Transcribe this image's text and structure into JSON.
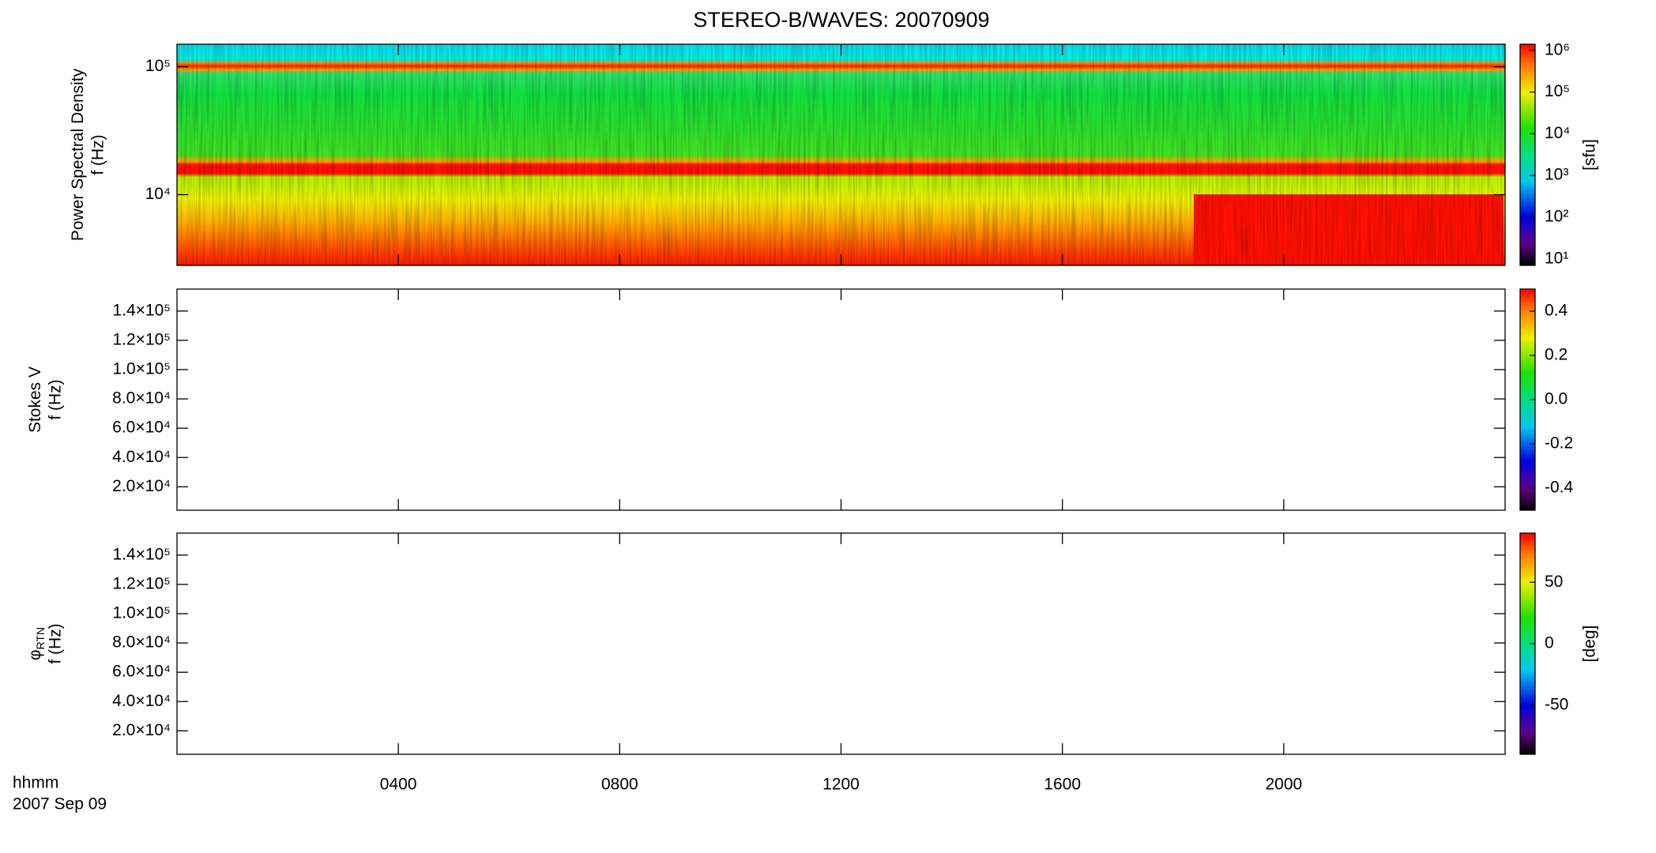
{
  "chart_data": {
    "type": "spectrogram",
    "title": "STEREO-B/WAVES: 20070909",
    "x_label": "hhmm",
    "date": "2007 Sep 09",
    "xlim": [
      0,
      24
    ],
    "xticks": [
      {
        "value": 4,
        "label": "0400"
      },
      {
        "value": 8,
        "label": "0800"
      },
      {
        "value": 12,
        "label": "1200"
      },
      {
        "value": 16,
        "label": "1600"
      },
      {
        "value": 20,
        "label": "2000"
      }
    ],
    "panels": [
      {
        "type": "spectrogram",
        "y_label": "Power Spectral Density",
        "y_label2": "f (Hz)",
        "log_y": true,
        "ylim": [
          2800,
          150000
        ],
        "yticks": [
          {
            "value": 10000,
            "label": "10⁴"
          },
          {
            "value": 100000,
            "label": "10⁵"
          }
        ],
        "colorbar": {
          "label": "[sfu]",
          "log": true,
          "lim": [
            7,
            1400000
          ],
          "ticks": [
            {
              "value": 10,
              "label": "10¹"
            },
            {
              "value": 100,
              "label": "10²"
            },
            {
              "value": 1000,
              "label": "10³"
            },
            {
              "value": 10000,
              "label": "10⁴"
            },
            {
              "value": 100000,
              "label": "10⁵"
            },
            {
              "value": 1000000,
              "label": "10⁶"
            }
          ]
        }
      },
      {
        "type": "spectrogram",
        "y_label": "Stokes V",
        "y_label2": "f (Hz)",
        "log_y": false,
        "ylim": [
          4000,
          155000
        ],
        "yticks": [
          {
            "value": 20000,
            "label": "2.0×10⁴"
          },
          {
            "value": 40000,
            "label": "4.0×10⁴"
          },
          {
            "value": 60000,
            "label": "6.0×10⁴"
          },
          {
            "value": 80000,
            "label": "8.0×10⁴"
          },
          {
            "value": 100000,
            "label": "1.0×10⁵"
          },
          {
            "value": 120000,
            "label": "1.2×10⁵"
          },
          {
            "value": 140000,
            "label": "1.4×10⁵"
          }
        ],
        "colorbar": {
          "log": false,
          "lim": [
            -0.5,
            0.5
          ],
          "ticks": [
            -0.4,
            -0.2,
            {
              "value": 0,
              "label": "0.0"
            },
            0.2,
            0.4
          ]
        }
      },
      {
        "type": "spectrogram",
        "y_label": "φ",
        "y_label_sub": "RTN",
        "y_label2": "f (Hz)",
        "log_y": false,
        "ylim": [
          4000,
          155000
        ],
        "yticks": [
          {
            "value": 20000,
            "label": "2.0×10⁴"
          },
          {
            "value": 40000,
            "label": "4.0×10⁴"
          },
          {
            "value": 60000,
            "label": "6.0×10⁴"
          },
          {
            "value": 80000,
            "label": "8.0×10⁴"
          },
          {
            "value": 100000,
            "label": "1.0×10⁵"
          },
          {
            "value": 120000,
            "label": "1.2×10⁵"
          },
          {
            "value": 140000,
            "label": "1.4×10⁵"
          }
        ],
        "colorbar": {
          "label": "[deg]",
          "log": false,
          "lim": [
            -90,
            90
          ],
          "ticks": [
            -50,
            0,
            50
          ]
        }
      }
    ]
  }
}
